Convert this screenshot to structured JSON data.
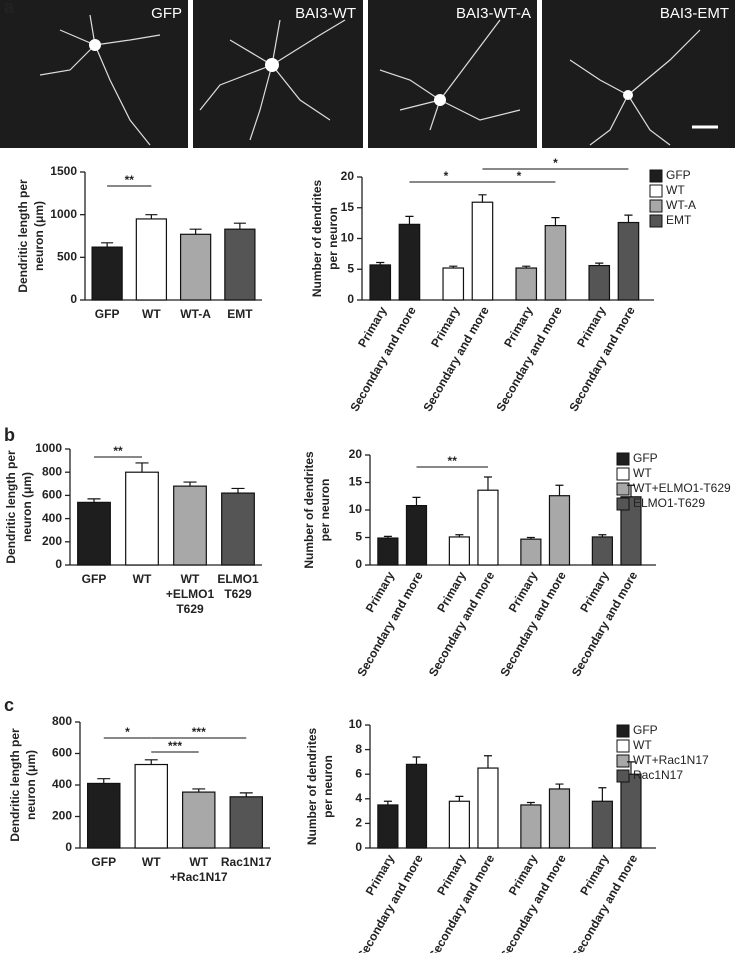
{
  "panel_labels": [
    "a",
    "b",
    "c"
  ],
  "micrographs": {
    "labels": [
      "GFP",
      "BAI3-WT",
      "BAI3-WT-A",
      "BAI3-EMT"
    ]
  },
  "chart_data": [
    {
      "type": "bar",
      "ylabel": [
        "Dendritic length per",
        "neuron (μm)"
      ],
      "categories": [
        "GFP",
        "WT",
        "WT-A",
        "EMT"
      ],
      "values": [
        620,
        950,
        770,
        830
      ],
      "errors": [
        50,
        50,
        60,
        70
      ],
      "colors": [
        "#1e1e1e",
        "#ffffff",
        "#a8a8a8",
        "#555555"
      ],
      "ylim": [
        0,
        1500
      ],
      "yticks": [
        0,
        500,
        1000,
        1500
      ],
      "significance": [
        "**"
      ]
    },
    {
      "type": "grouped_bar",
      "ylabel": [
        "Number of dendrites",
        "per neuron"
      ],
      "categories": [
        "Primary",
        "Secondary and more"
      ],
      "series": [
        {
          "name": "GFP",
          "color": "#1e1e1e",
          "values": [
            5.7,
            12.3
          ],
          "errors": [
            0.4,
            1.3
          ]
        },
        {
          "name": "WT",
          "color": "#ffffff",
          "values": [
            5.2,
            15.9
          ],
          "errors": [
            0.3,
            1.2
          ]
        },
        {
          "name": "WT-A",
          "color": "#a8a8a8",
          "values": [
            5.2,
            12.1
          ],
          "errors": [
            0.3,
            1.3
          ]
        },
        {
          "name": "EMT",
          "color": "#555555",
          "values": [
            5.6,
            12.6
          ],
          "errors": [
            0.4,
            1.2
          ]
        }
      ],
      "ylim": [
        0,
        20
      ],
      "yticks": [
        0,
        5,
        10,
        15,
        20
      ],
      "legend": "right",
      "significance": [
        "*",
        "*",
        "*"
      ]
    },
    {
      "type": "bar",
      "ylabel": [
        "Dendritic length per",
        "neuron (μm)"
      ],
      "categories": [
        "GFP",
        "WT",
        [
          "WT",
          "+ELMO1",
          "T629"
        ],
        [
          "ELMO1",
          "T629"
        ]
      ],
      "values": [
        540,
        800,
        680,
        620
      ],
      "errors": [
        30,
        80,
        35,
        40
      ],
      "colors": [
        "#1e1e1e",
        "#ffffff",
        "#a8a8a8",
        "#555555"
      ],
      "ylim": [
        0,
        1000
      ],
      "yticks": [
        0,
        200,
        400,
        600,
        800,
        1000
      ],
      "significance": [
        "**"
      ]
    },
    {
      "type": "grouped_bar",
      "ylabel": [
        "Number of dendrites",
        "per neuron"
      ],
      "categories": [
        "Primary",
        "Secondary and more"
      ],
      "series": [
        {
          "name": "GFP",
          "color": "#1e1e1e",
          "values": [
            4.9,
            10.8
          ],
          "errors": [
            0.3,
            1.5
          ]
        },
        {
          "name": "WT",
          "color": "#ffffff",
          "values": [
            5.1,
            13.6
          ],
          "errors": [
            0.4,
            2.4
          ]
        },
        {
          "name": "WT+ELMO1-T629",
          "color": "#a8a8a8",
          "values": [
            4.7,
            12.6
          ],
          "errors": [
            0.3,
            1.9
          ]
        },
        {
          "name": "ELMO1-T629",
          "color": "#555555",
          "values": [
            5.1,
            12.4
          ],
          "errors": [
            0.4,
            2.1
          ]
        }
      ],
      "ylim": [
        0,
        20
      ],
      "yticks": [
        0,
        5,
        10,
        15,
        20
      ],
      "legend": "right",
      "significance": [
        "**"
      ]
    },
    {
      "type": "bar",
      "ylabel": [
        "Dendritic length per",
        "neuron (μm)"
      ],
      "categories": [
        "GFP",
        "WT",
        [
          "WT",
          "+Rac1N17"
        ],
        "Rac1N17"
      ],
      "values": [
        410,
        530,
        355,
        325
      ],
      "errors": [
        30,
        30,
        20,
        25
      ],
      "colors": [
        "#1e1e1e",
        "#ffffff",
        "#a8a8a8",
        "#555555"
      ],
      "ylim": [
        0,
        800
      ],
      "yticks": [
        0,
        200,
        400,
        600,
        800
      ],
      "significance": [
        "*",
        "***",
        "***"
      ]
    },
    {
      "type": "grouped_bar",
      "ylabel": [
        "Number of dendrites",
        "per neuron"
      ],
      "categories": [
        "Primary",
        "Secondary and more"
      ],
      "series": [
        {
          "name": "GFP",
          "color": "#1e1e1e",
          "values": [
            3.5,
            6.8
          ],
          "errors": [
            0.3,
            0.6
          ]
        },
        {
          "name": "WT",
          "color": "#ffffff",
          "values": [
            3.8,
            6.5
          ],
          "errors": [
            0.4,
            1.0
          ]
        },
        {
          "name": "WT+Rac1N17",
          "color": "#a8a8a8",
          "values": [
            3.5,
            4.8
          ],
          "errors": [
            0.2,
            0.4
          ]
        },
        {
          "name": "Rac1N17",
          "color": "#555555",
          "values": [
            3.8,
            6.0
          ],
          "errors": [
            1.1,
            1.0
          ]
        }
      ],
      "ylim": [
        0,
        10
      ],
      "yticks": [
        0,
        2,
        4,
        6,
        8,
        10
      ],
      "legend": "right",
      "significance": []
    }
  ]
}
